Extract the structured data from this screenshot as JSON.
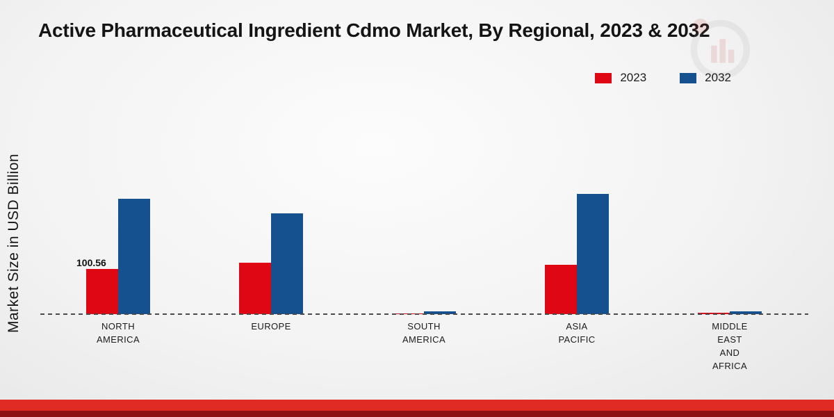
{
  "title": "Active Pharmaceutical Ingredient Cdmo Market, By Regional, 2023 & 2032",
  "ylabel": "Market Size in USD Billion",
  "legend": {
    "items": [
      {
        "label": "2023",
        "color": "#e00714"
      },
      {
        "label": "2032",
        "color": "#15518f"
      }
    ]
  },
  "chart_data": {
    "type": "bar",
    "title": "Active Pharmaceutical Ingredient Cdmo Market, By Regional, 2023 & 2032",
    "xlabel": "",
    "ylabel": "Market Size in USD Billion",
    "categories": [
      "NORTH\nAMERICA",
      "EUROPE",
      "SOUTH\nAMERICA",
      "ASIA\nPACIFIC",
      "MIDDLE\nEAST\nAND\nAFRICA"
    ],
    "series": [
      {
        "name": "2023",
        "color": "#e00714",
        "values": [
          100.56,
          115,
          2,
          110,
          2.5
        ]
      },
      {
        "name": "2032",
        "color": "#15518f",
        "values": [
          258,
          226,
          6,
          270,
          7
        ]
      }
    ],
    "value_labels": [
      {
        "series_index": 0,
        "category_index": 0,
        "text": "100.56"
      }
    ],
    "ylim": [
      0,
      470
    ],
    "grid": false,
    "baseline_style": "dashed",
    "legend_position": "top-right"
  }
}
